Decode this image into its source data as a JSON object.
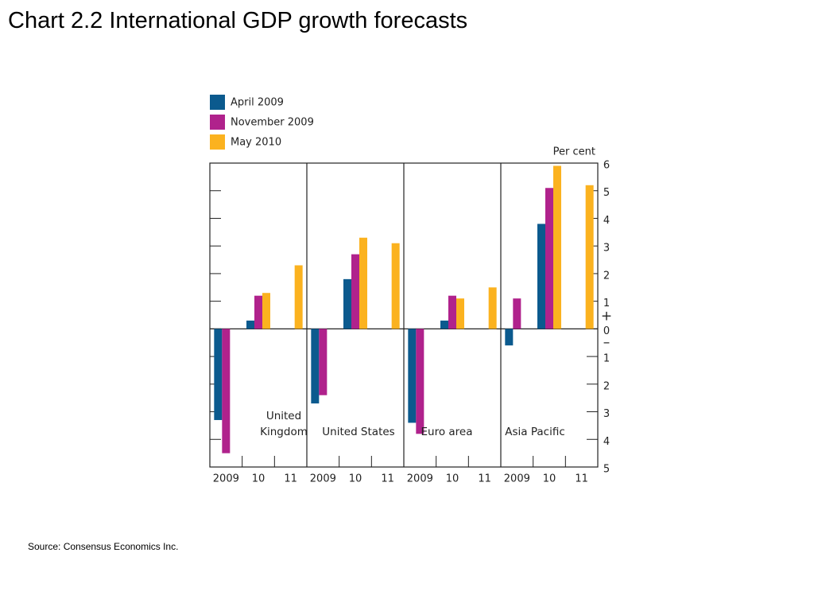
{
  "chart_data": {
    "type": "bar",
    "title": "Chart 2.2  International GDP growth forecasts",
    "source": "Source:  Consensus Economics Inc.",
    "y_unit_label": "Per cent",
    "positive_sign": "+",
    "negative_sign": "–",
    "groups": [
      "United Kingdom",
      "United States",
      "Euro area",
      "Asia Pacific"
    ],
    "categories": [
      "2009",
      "10",
      "11",
      "2009",
      "10",
      "11",
      "2009",
      "10",
      "11",
      "2009",
      "10",
      "11"
    ],
    "series": [
      {
        "name": "April 2009",
        "color": "#0b5a8e",
        "values": [
          -3.3,
          0.3,
          null,
          -2.7,
          1.8,
          null,
          -3.4,
          0.3,
          null,
          -0.6,
          3.8,
          null
        ]
      },
      {
        "name": "November 2009",
        "color": "#b0228c",
        "values": [
          -4.5,
          1.2,
          null,
          -2.4,
          2.7,
          null,
          -3.8,
          1.2,
          null,
          1.1,
          5.1,
          null
        ]
      },
      {
        "name": "May 2010",
        "color": "#fbb21f",
        "values": [
          null,
          1.3,
          2.3,
          null,
          3.3,
          3.1,
          null,
          1.1,
          1.5,
          null,
          5.9,
          5.2
        ]
      }
    ],
    "ylim": [
      -5,
      6
    ],
    "yticks": [
      {
        "value": -5,
        "label": "5"
      },
      {
        "value": -4,
        "label": "4"
      },
      {
        "value": -3,
        "label": "3"
      },
      {
        "value": -2,
        "label": "2"
      },
      {
        "value": -1,
        "label": "1"
      },
      0,
      1,
      2,
      3,
      4,
      5,
      6
    ]
  }
}
